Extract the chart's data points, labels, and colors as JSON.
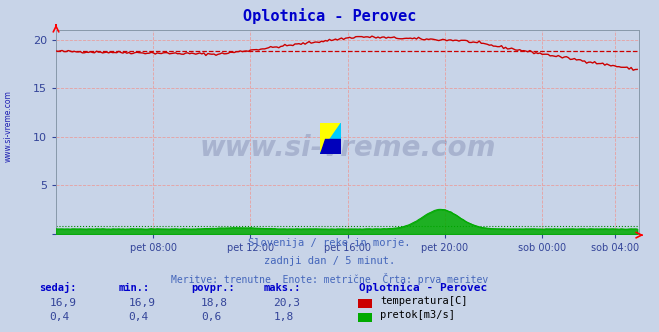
{
  "title": "Oplotnica - Perovec",
  "title_color": "#0000cc",
  "bg_color": "#c8d4e8",
  "plot_bg_color": "#c8d4e8",
  "grid_color": "#e8a0a0",
  "xlim": [
    0,
    288
  ],
  "ylim": [
    0,
    21
  ],
  "yticks": [
    0,
    5,
    10,
    15,
    20
  ],
  "xtick_labels": [
    "pet 08:00",
    "pet 12:00",
    "pet 16:00",
    "pet 20:00",
    "sob 00:00",
    "sob 04:00"
  ],
  "xtick_positions": [
    48,
    96,
    144,
    192,
    240,
    276
  ],
  "temp_color": "#cc0000",
  "flow_color": "#00aa00",
  "flow_dot_color": "#008800",
  "temp_avg_value": 18.8,
  "flow_avg_value": 0.6,
  "watermark": "www.si-vreme.com",
  "watermark_color": "#1a2060",
  "watermark_alpha": 0.18,
  "footer_line1": "Slovenija / reke in morje.",
  "footer_line2": "zadnji dan / 5 minut.",
  "footer_line3": "Meritve: trenutne  Enote: metrične  Črta: prva meritev",
  "footer_color": "#4466bb",
  "table_header_color": "#0000cc",
  "table_value_color": "#334499",
  "sidebar_text": "www.si-vreme.com",
  "sidebar_color": "#0000aa",
  "n_points": 288,
  "temp_min": 16.9,
  "temp_max": 20.3,
  "temp_povpr": 18.8,
  "temp_sedaj": 16.9,
  "flow_min": 0.4,
  "flow_max": 1.8,
  "flow_povpr": 0.6,
  "flow_sedaj": 0.4,
  "flow_ymax": 21.0,
  "flow_data_max": 1.8,
  "flow_display_max": 2.5
}
